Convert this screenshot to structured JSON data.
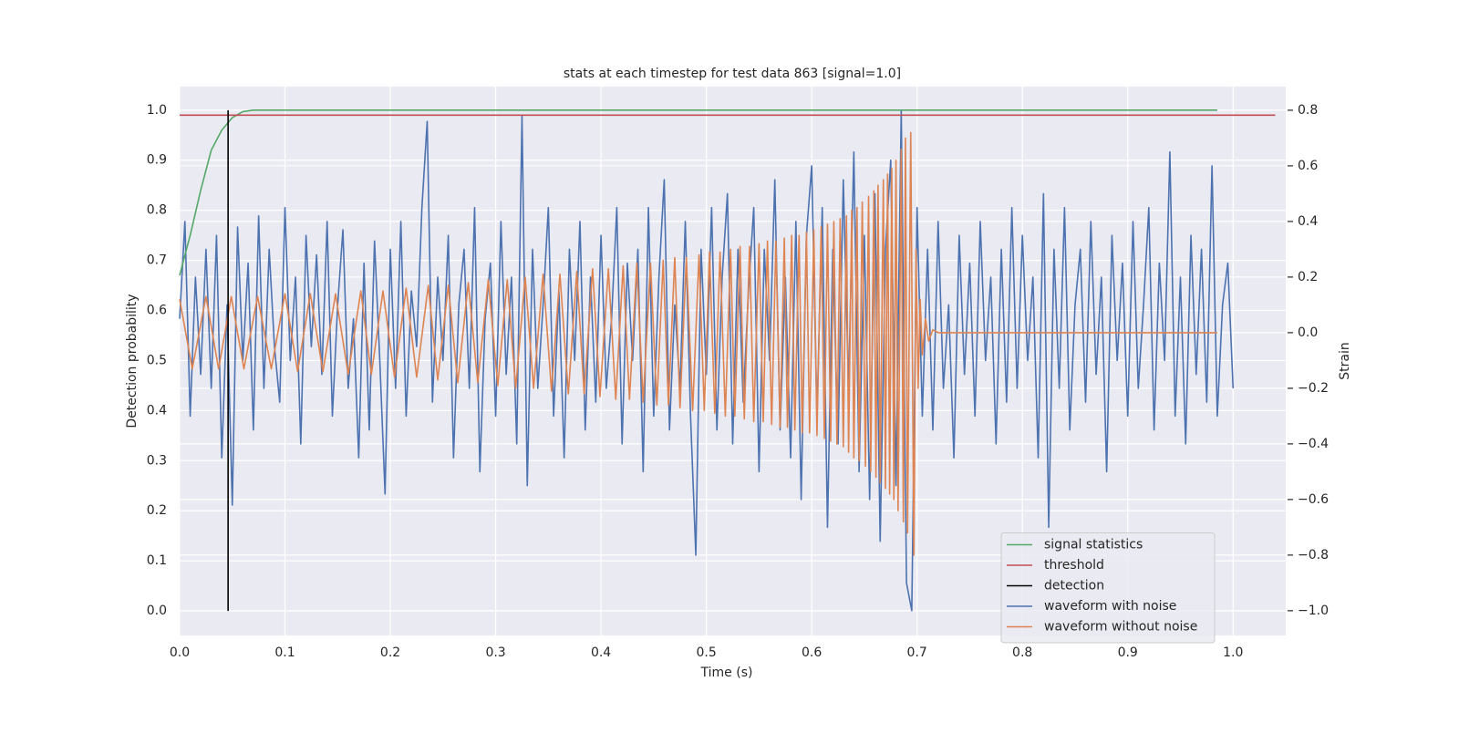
{
  "chart_data": {
    "type": "line",
    "title": "stats at each timestep for test data 863 [signal=1.0]",
    "x_label": "Time (s)",
    "y_label": "Detection probability",
    "y2_label": "Strain",
    "xlim": [
      0,
      1.05
    ],
    "ylim": [
      -0.049,
      1.047
    ],
    "y2lim": [
      -1.089,
      0.885
    ],
    "xticks": [
      {
        "value": 0,
        "label": "0.0"
      },
      0.1,
      0.2,
      0.3,
      0.4,
      0.5,
      0.6,
      0.7,
      0.8,
      0.9,
      {
        "value": 1,
        "label": "1.0"
      }
    ],
    "yticks": [
      {
        "value": 0,
        "label": "0.0"
      },
      0.1,
      0.2,
      0.3,
      0.4,
      0.5,
      0.6,
      0.7,
      0.8,
      0.9,
      {
        "value": 1,
        "label": "1.0"
      }
    ],
    "y2ticks": [
      {
        "value": -1,
        "label": "−1.0"
      },
      {
        "value": -0.8,
        "label": "−0.8"
      },
      {
        "value": -0.6,
        "label": "−0.6"
      },
      {
        "value": -0.4,
        "label": "−0.4"
      },
      {
        "value": -0.2,
        "label": "−0.2"
      },
      {
        "value": 0,
        "label": "0.0"
      },
      0.2,
      0.4,
      0.6,
      0.8
    ],
    "grid": true,
    "legend": "lower right",
    "series": [
      {
        "name": "signal statistics",
        "color": "#55a868",
        "x": [
          0,
          0.01,
          0.02,
          0.03,
          0.04,
          0.05,
          0.06,
          0.07,
          0.985
        ],
        "values": [
          0.67,
          0.75,
          0.84,
          0.92,
          0.96,
          0.985,
          0.997,
          1.0,
          1.0
        ]
      },
      {
        "name": "threshold",
        "color": "#c44e52",
        "x": [
          0,
          1.04
        ],
        "values": [
          0.99,
          0.99
        ]
      },
      {
        "name": "detection",
        "color": "#000000",
        "x": [
          0.046,
          0.046
        ],
        "values": [
          0,
          1
        ]
      },
      {
        "name": "waveform with noise",
        "color": "#4c72b0",
        "axis": "y2",
        "x": [
          0,
          0.005,
          0.01,
          0.015,
          0.02,
          0.025,
          0.03,
          0.035,
          0.04,
          0.045,
          0.05,
          0.055,
          0.06,
          0.065,
          0.07,
          0.075,
          0.08,
          0.085,
          0.09,
          0.095,
          0.1,
          0.105,
          0.11,
          0.115,
          0.12,
          0.125,
          0.13,
          0.135,
          0.14,
          0.145,
          0.15,
          0.155,
          0.16,
          0.165,
          0.17,
          0.175,
          0.18,
          0.185,
          0.19,
          0.195,
          0.2,
          0.205,
          0.21,
          0.215,
          0.22,
          0.225,
          0.23,
          0.235,
          0.24,
          0.245,
          0.25,
          0.255,
          0.26,
          0.265,
          0.27,
          0.275,
          0.28,
          0.285,
          0.29,
          0.295,
          0.3,
          0.305,
          0.31,
          0.315,
          0.32,
          0.325,
          0.33,
          0.335,
          0.34,
          0.345,
          0.35,
          0.355,
          0.36,
          0.365,
          0.37,
          0.375,
          0.38,
          0.385,
          0.39,
          0.395,
          0.4,
          0.405,
          0.41,
          0.415,
          0.42,
          0.425,
          0.43,
          0.435,
          0.44,
          0.445,
          0.45,
          0.455,
          0.46,
          0.465,
          0.47,
          0.475,
          0.48,
          0.485,
          0.49,
          0.495,
          0.5,
          0.505,
          0.51,
          0.515,
          0.52,
          0.525,
          0.53,
          0.535,
          0.54,
          0.545,
          0.55,
          0.555,
          0.56,
          0.565,
          0.57,
          0.575,
          0.58,
          0.585,
          0.59,
          0.595,
          0.6,
          0.605,
          0.61,
          0.615,
          0.62,
          0.625,
          0.63,
          0.635,
          0.64,
          0.645,
          0.65,
          0.655,
          0.66,
          0.665,
          0.67,
          0.675,
          0.68,
          0.685,
          0.69,
          0.695,
          0.7,
          0.705,
          0.71,
          0.715,
          0.72,
          0.725,
          0.73,
          0.735,
          0.74,
          0.745,
          0.75,
          0.755,
          0.76,
          0.765,
          0.77,
          0.775,
          0.78,
          0.785,
          0.79,
          0.795,
          0.8,
          0.805,
          0.81,
          0.815,
          0.82,
          0.825,
          0.83,
          0.835,
          0.84,
          0.845,
          0.85,
          0.855,
          0.86,
          0.865,
          0.87,
          0.875,
          0.88,
          0.885,
          0.89,
          0.895,
          0.9,
          0.905,
          0.91,
          0.915,
          0.92,
          0.925,
          0.93,
          0.935,
          0.94,
          0.945,
          0.95,
          0.955,
          0.96,
          0.965,
          0.97,
          0.975,
          0.98,
          0.985,
          0.99,
          0.995,
          1.0
        ],
        "values": [
          0.05,
          0.4,
          -0.3,
          0.2,
          -0.15,
          0.3,
          -0.2,
          0.35,
          -0.45,
          0.1,
          -0.62,
          0.38,
          -0.1,
          0.25,
          -0.35,
          0.42,
          -0.2,
          0.3,
          -0.05,
          -0.25,
          0.45,
          -0.1,
          0.2,
          -0.4,
          0.35,
          -0.05,
          0.28,
          -0.15,
          0.4,
          -0.3,
          0.1,
          0.37,
          -0.2,
          0.05,
          -0.45,
          0.25,
          -0.35,
          0.33,
          -0.1,
          -0.58,
          0.3,
          -0.2,
          0.4,
          -0.3,
          0.15,
          -0.05,
          0.45,
          0.76,
          -0.25,
          0.2,
          -0.1,
          0.35,
          -0.45,
          0.1,
          0.3,
          -0.2,
          0.45,
          -0.5,
          0.05,
          0.25,
          -0.3,
          0.4,
          -0.15,
          0.2,
          -0.4,
          0.78,
          -0.55,
          0.3,
          -0.2,
          0.1,
          0.45,
          -0.3,
          0.15,
          -0.45,
          0.3,
          -0.1,
          0.4,
          -0.35,
          0.2,
          -0.25,
          0.35,
          -0.2,
          0.05,
          0.45,
          -0.4,
          0.25,
          -0.1,
          0.3,
          -0.5,
          0.45,
          -0.3,
          0.2,
          0.55,
          -0.35,
          0.1,
          -0.2,
          0.4,
          -0.3,
          -0.8,
          0.3,
          -0.15,
          0.45,
          -0.35,
          0.2,
          0.5,
          -0.4,
          0.3,
          -0.25,
          0.15,
          0.45,
          -0.5,
          0.3,
          -0.1,
          0.55,
          -0.35,
          0.2,
          -0.45,
          0.4,
          -0.6,
          0.35,
          0.6,
          -0.3,
          0.45,
          -0.7,
          0.3,
          -0.4,
          0.55,
          -0.2,
          0.65,
          -0.5,
          0.35,
          -0.6,
          0.5,
          -0.75,
          0.3,
          0.62,
          -0.55,
          0.8,
          -0.9,
          -1.0,
          0.45,
          -0.3,
          0.3,
          -0.35,
          0.4,
          -0.2,
          0.1,
          -0.45,
          0.35,
          -0.15,
          0.25,
          -0.3,
          0.4,
          -0.1,
          0.2,
          -0.4,
          0.3,
          -0.25,
          0.45,
          -0.2,
          0.35,
          -0.1,
          0.2,
          -0.45,
          0.5,
          -0.7,
          0.3,
          -0.2,
          0.45,
          -0.35,
          0.1,
          0.3,
          -0.25,
          0.4,
          -0.15,
          0.2,
          -0.5,
          0.35,
          -0.1,
          0.25,
          -0.3,
          0.4,
          -0.2,
          0.1,
          0.45,
          -0.35,
          0.25,
          -0.1,
          0.65,
          -0.3,
          0.2,
          -0.4,
          0.35,
          -0.15,
          0.3,
          -0.25,
          0.6,
          -0.3,
          0.1,
          0.25,
          -0.2
        ]
      },
      {
        "name": "waveform without noise",
        "color": "#dd8452",
        "axis": "y2",
        "x": [
          0,
          0.012,
          0.025,
          0.037,
          0.049,
          0.061,
          0.074,
          0.087,
          0.1,
          0.112,
          0.124,
          0.136,
          0.148,
          0.16,
          0.172,
          0.182,
          0.193,
          0.204,
          0.215,
          0.225,
          0.236,
          0.245,
          0.255,
          0.264,
          0.274,
          0.283,
          0.293,
          0.302,
          0.311,
          0.319,
          0.328,
          0.336,
          0.345,
          0.353,
          0.361,
          0.369,
          0.377,
          0.384,
          0.392,
          0.399,
          0.407,
          0.414,
          0.421,
          0.427,
          0.434,
          0.44,
          0.447,
          0.453,
          0.459,
          0.464,
          0.47,
          0.475,
          0.481,
          0.487,
          0.493,
          0.498,
          0.503,
          0.508,
          0.513,
          0.518,
          0.523,
          0.527,
          0.532,
          0.536,
          0.541,
          0.545,
          0.55,
          0.554,
          0.558,
          0.562,
          0.566,
          0.57,
          0.574,
          0.577,
          0.581,
          0.584,
          0.588,
          0.591,
          0.595,
          0.598,
          0.602,
          0.605,
          0.609,
          0.612,
          0.615,
          0.618,
          0.621,
          0.624,
          0.627,
          0.63,
          0.633,
          0.635,
          0.638,
          0.64,
          0.643,
          0.645,
          0.648,
          0.651,
          0.654,
          0.656,
          0.659,
          0.661,
          0.663,
          0.665,
          0.668,
          0.67,
          0.672,
          0.674,
          0.676,
          0.678,
          0.68,
          0.682,
          0.685,
          0.687,
          0.689,
          0.691,
          0.694,
          0.697,
          0.699,
          0.701,
          0.703,
          0.705,
          0.708,
          0.711,
          0.715,
          0.72,
          0.985
        ],
        "values": [
          0.12,
          -0.13,
          0.13,
          -0.13,
          0.13,
          -0.13,
          0.13,
          -0.13,
          0.14,
          -0.14,
          0.14,
          -0.14,
          0.14,
          -0.15,
          0.15,
          -0.15,
          0.15,
          -0.16,
          0.16,
          -0.16,
          0.17,
          -0.17,
          0.17,
          -0.18,
          0.18,
          -0.18,
          0.19,
          -0.19,
          0.19,
          -0.2,
          0.2,
          -0.2,
          0.21,
          -0.21,
          0.21,
          -0.22,
          0.22,
          -0.22,
          0.23,
          -0.23,
          0.23,
          -0.24,
          0.24,
          -0.24,
          0.25,
          -0.25,
          0.25,
          -0.26,
          0.26,
          -0.26,
          0.27,
          -0.27,
          0.27,
          -0.28,
          0.28,
          -0.28,
          0.29,
          -0.29,
          0.29,
          -0.3,
          0.3,
          -0.3,
          0.31,
          -0.31,
          0.31,
          -0.32,
          0.32,
          -0.32,
          0.33,
          -0.33,
          0.33,
          -0.34,
          0.34,
          -0.34,
          0.35,
          -0.35,
          0.35,
          -0.36,
          0.36,
          -0.36,
          0.37,
          -0.37,
          0.38,
          -0.38,
          0.39,
          -0.39,
          0.4,
          -0.4,
          0.41,
          -0.41,
          0.42,
          -0.43,
          0.44,
          -0.45,
          0.45,
          -0.46,
          0.47,
          -0.48,
          0.49,
          -0.5,
          0.51,
          -0.52,
          0.53,
          -0.54,
          0.55,
          -0.56,
          0.57,
          -0.58,
          0.59,
          -0.6,
          0.62,
          -0.64,
          0.66,
          -0.68,
          0.7,
          -0.72,
          0.72,
          -0.8,
          0.3,
          -0.2,
          0.12,
          -0.08,
          0.05,
          -0.03,
          0.01,
          0,
          0
        ]
      }
    ]
  }
}
